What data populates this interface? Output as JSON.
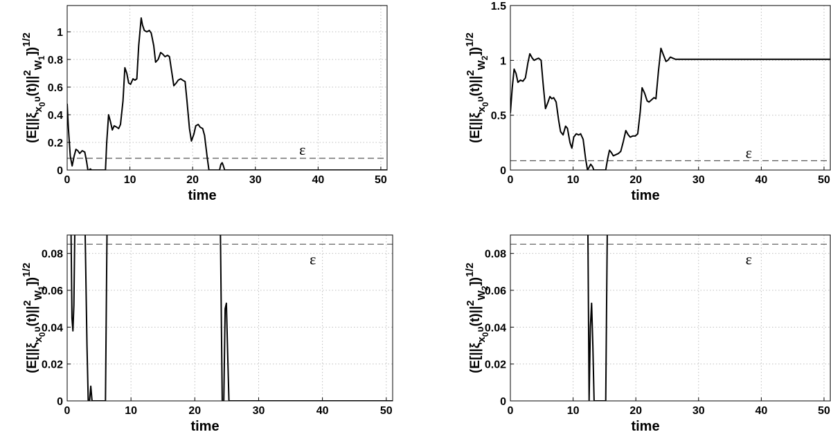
{
  "chart_data": [
    {
      "type": "line",
      "xlabel": "time",
      "ylabel": "(E[||ξx0,υ(t)||²W1])^1/2",
      "ylabel_parts": {
        "lead": "(E[||ξ",
        "sub1": "x",
        "sub2": "0",
        "sub3": "υ",
        "mid": "(t)||",
        "sup2": "2",
        "subw": "W",
        "subw2": "1",
        "tail": "])",
        "sup": "1/2"
      },
      "xlim": [
        0,
        51
      ],
      "ylim": [
        0,
        1.19
      ],
      "xticks": [
        0,
        10,
        20,
        30,
        40,
        50
      ],
      "yticks": [
        0,
        0.2,
        0.4,
        0.6,
        0.8,
        1
      ],
      "ytick_labels": [
        "0",
        "0.2",
        "0.4",
        "0.6",
        "0.8",
        "1"
      ],
      "grid": true,
      "threshold": {
        "value": 0.085,
        "label": "ε",
        "label_x": 37.5,
        "label_y": 0.15
      },
      "series": [
        {
          "x": [
            0,
            0.2,
            0.5,
            0.8,
            1.1,
            1.4,
            1.7,
            2.0,
            2.4,
            2.8,
            3.1,
            3.3,
            3.5,
            3.7,
            3.9,
            4.2,
            6.1,
            6.3,
            6.6,
            6.9,
            7.2,
            7.5,
            7.9,
            8.2,
            8.5,
            8.9,
            9.2,
            9.5,
            9.8,
            10.1,
            10.5,
            10.8,
            11.1,
            11.4,
            11.8,
            12.0,
            12.3,
            12.7,
            13.1,
            13.4,
            13.8,
            14.1,
            14.5,
            14.9,
            15.2,
            15.6,
            16.0,
            16.3,
            16.7,
            17.0,
            17.4,
            17.7,
            18.1,
            18.4,
            18.8,
            19.1,
            19.5,
            19.8,
            20.2,
            20.5,
            20.9,
            21.2,
            21.6,
            21.9,
            22.3,
            22.6,
            23.0,
            23.3,
            23.6,
            23.9,
            24.1,
            24.3,
            24.5,
            24.7,
            24.9,
            25.1,
            25.3,
            25.6,
            51
          ],
          "y": [
            0.48,
            0.3,
            0.1,
            0.03,
            0.1,
            0.15,
            0.14,
            0.12,
            0.14,
            0.13,
            0.06,
            0.0,
            0.0,
            0.008,
            0.0,
            0.0,
            0.0,
            0.2,
            0.4,
            0.35,
            0.29,
            0.32,
            0.31,
            0.3,
            0.33,
            0.5,
            0.74,
            0.7,
            0.63,
            0.62,
            0.66,
            0.65,
            0.66,
            0.9,
            1.1,
            1.05,
            1.01,
            1.0,
            1.01,
            0.99,
            0.9,
            0.78,
            0.8,
            0.85,
            0.84,
            0.82,
            0.83,
            0.82,
            0.7,
            0.61,
            0.63,
            0.65,
            0.66,
            0.65,
            0.64,
            0.5,
            0.3,
            0.21,
            0.26,
            0.32,
            0.33,
            0.31,
            0.3,
            0.25,
            0.1,
            0.0,
            0.0,
            0.0,
            0.0,
            0.0,
            0.0,
            0.0,
            0.04,
            0.053,
            0.03,
            0.0,
            0.0,
            0.0,
            0.0
          ]
        }
      ]
    },
    {
      "type": "line",
      "xlabel": "time",
      "ylabel": "(E[||ξx0,υ(t)||²W2])^1/2",
      "ylabel_parts": {
        "lead": "(E[||ξ",
        "sub1": "x",
        "sub2": "0",
        "sub3": "υ",
        "mid": "(t)||",
        "sup2": "2",
        "subw": "W",
        "subw2": "2",
        "tail": "])",
        "sup": "1/2"
      },
      "xlim": [
        0,
        51
      ],
      "ylim": [
        0,
        1.5
      ],
      "xticks": [
        0,
        10,
        20,
        30,
        40,
        50
      ],
      "yticks": [
        0,
        0.5,
        1,
        1.5
      ],
      "ytick_labels": [
        "0",
        "0.5",
        "1",
        "1.5"
      ],
      "grid": true,
      "threshold": {
        "value": 0.085,
        "label": "ε",
        "label_x": 38,
        "label_y": 0.16
      },
      "series": [
        {
          "x": [
            0,
            0.3,
            0.6,
            0.9,
            1.2,
            1.6,
            2.0,
            2.4,
            2.8,
            3.1,
            3.5,
            3.8,
            4.1,
            4.5,
            4.9,
            5.2,
            5.6,
            6.0,
            6.3,
            6.6,
            6.9,
            7.3,
            7.7,
            8.0,
            8.4,
            8.8,
            9.1,
            9.5,
            9.8,
            10.1,
            10.5,
            10.9,
            11.2,
            11.6,
            12.0,
            12.3,
            12.6,
            12.8,
            13.1,
            13.3,
            15.2,
            15.5,
            15.8,
            16.1,
            16.4,
            16.8,
            17.2,
            17.6,
            18.0,
            18.4,
            18.8,
            19.1,
            19.5,
            19.9,
            20.3,
            20.7,
            21.0,
            21.4,
            21.8,
            22.1,
            22.5,
            22.9,
            23.2,
            23.6,
            24.0,
            24.4,
            24.8,
            25.1,
            25.5,
            25.9,
            26.3,
            27,
            28,
            51
          ],
          "y": [
            0.52,
            0.75,
            0.92,
            0.88,
            0.8,
            0.82,
            0.81,
            0.84,
            0.98,
            1.06,
            1.02,
            1.0,
            1.01,
            1.02,
            1.0,
            0.8,
            0.56,
            0.62,
            0.67,
            0.65,
            0.66,
            0.62,
            0.45,
            0.35,
            0.32,
            0.4,
            0.38,
            0.25,
            0.2,
            0.3,
            0.33,
            0.32,
            0.33,
            0.28,
            0.1,
            0.0,
            0.03,
            0.053,
            0.03,
            0.0,
            0.0,
            0.1,
            0.18,
            0.16,
            0.13,
            0.14,
            0.15,
            0.17,
            0.26,
            0.36,
            0.32,
            0.3,
            0.31,
            0.31,
            0.33,
            0.53,
            0.75,
            0.7,
            0.63,
            0.62,
            0.64,
            0.66,
            0.65,
            0.9,
            1.11,
            1.05,
            0.99,
            1.0,
            1.03,
            1.02,
            1.01,
            1.01,
            1.01,
            1.01
          ]
        }
      ]
    },
    {
      "type": "line",
      "xlabel": "time",
      "ylabel": "(E[||ξx0,υ(t)||²W1])^1/2",
      "ylabel_parts": {
        "lead": "(E[||ξ",
        "sub1": "x",
        "sub2": "0",
        "sub3": "υ",
        "mid": "(t)||",
        "sup2": "2",
        "subw": "W",
        "subw2": "1",
        "tail": "])",
        "sup": "1/2"
      },
      "xlim": [
        0,
        51
      ],
      "ylim": [
        0,
        0.09
      ],
      "xticks": [
        0,
        10,
        20,
        30,
        40,
        50
      ],
      "yticks": [
        0,
        0.02,
        0.04,
        0.06,
        0.08
      ],
      "ytick_labels": [
        "0",
        "0.02",
        "0.04",
        "0.06",
        "0.08"
      ],
      "grid": true,
      "threshold": {
        "value": 0.085,
        "label": "ε",
        "label_x": 38.5,
        "label_y": 0.077
      },
      "series": [
        {
          "x": [
            0.6,
            0.75,
            0.9,
            1.05,
            1.2,
            2.8,
            3.1,
            3.3,
            3.5,
            3.7,
            3.9,
            4.1,
            6.0,
            6.25,
            24.0,
            24.3,
            24.55,
            24.75,
            24.95,
            25.15,
            25.35,
            25.6,
            51
          ],
          "y": [
            0.095,
            0.045,
            0.038,
            0.052,
            0.095,
            0.095,
            0.03,
            0.0,
            0.0,
            0.008,
            0.0,
            0.0,
            0.0,
            0.095,
            0.095,
            0.0,
            0.0,
            0.05,
            0.053,
            0.025,
            0.0,
            0.0,
            0.0
          ]
        }
      ]
    },
    {
      "type": "line",
      "xlabel": "time",
      "ylabel": "(E[||ξx0,υ(t)||²W2])^1/2",
      "ylabel_parts": {
        "lead": "(E[||ξ",
        "sub1": "x",
        "sub2": "0",
        "sub3": "υ",
        "mid": "(t)||",
        "sup2": "2",
        "subw": "W",
        "subw2": "2",
        "tail": "])",
        "sup": "1/2"
      },
      "xlim": [
        0,
        51
      ],
      "ylim": [
        0,
        0.09
      ],
      "xticks": [
        0,
        10,
        20,
        30,
        40,
        50
      ],
      "yticks": [
        0,
        0.02,
        0.04,
        0.06,
        0.08
      ],
      "ytick_labels": [
        "0",
        "0.02",
        "0.04",
        "0.06",
        "0.08"
      ],
      "grid": true,
      "threshold": {
        "value": 0.085,
        "label": "ε",
        "label_x": 38,
        "label_y": 0.077
      },
      "series": [
        {
          "x": [
            12.35,
            12.55,
            12.75,
            12.95,
            13.15,
            13.35,
            15.2,
            15.45
          ],
          "y": [
            0.095,
            0.0,
            0.04,
            0.053,
            0.03,
            0.0,
            0.0,
            0.095
          ]
        }
      ]
    }
  ]
}
